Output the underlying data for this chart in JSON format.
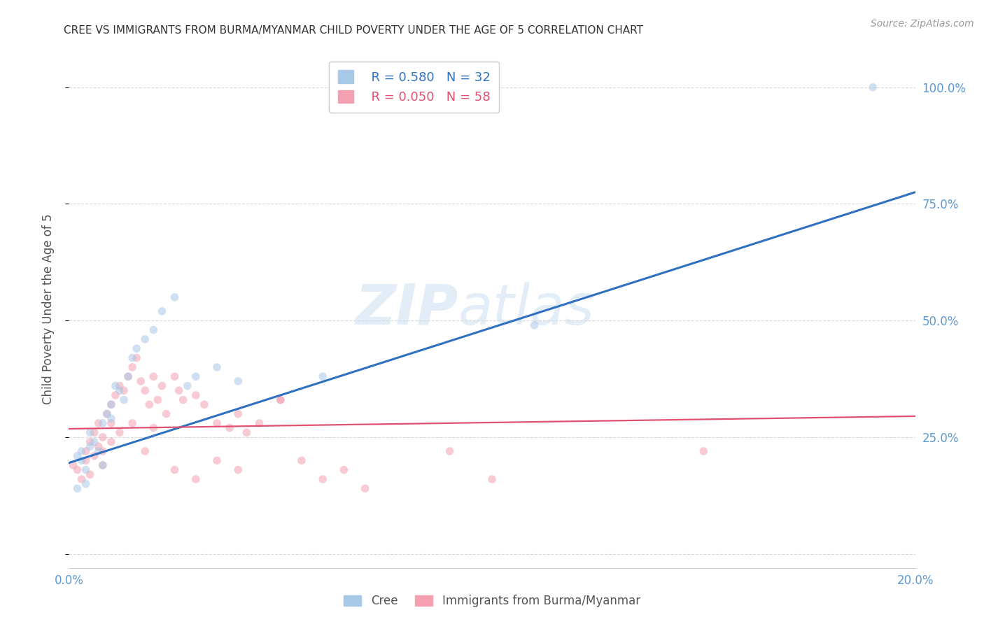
{
  "title": "CREE VS IMMIGRANTS FROM BURMA/MYANMAR CHILD POVERTY UNDER THE AGE OF 5 CORRELATION CHART",
  "source": "Source: ZipAtlas.com",
  "ylabel": "Child Poverty Under the Age of 5",
  "watermark_zip": "ZIP",
  "watermark_atlas": "atlas",
  "legend_blue_R": "R = 0.580",
  "legend_blue_N": "N = 32",
  "legend_pink_R": "R = 0.050",
  "legend_pink_N": "N = 58",
  "legend_blue_label": "Cree",
  "legend_pink_label": "Immigrants from Burma/Myanmar",
  "blue_color": "#a8c8e8",
  "pink_color": "#f4a0b0",
  "trendline_blue_color": "#3070c0",
  "trendline_pink_color": "#e05070",
  "blue_scatter_x": [
    0.002,
    0.003,
    0.003,
    0.004,
    0.004,
    0.005,
    0.005,
    0.006,
    0.007,
    0.008,
    0.008,
    0.009,
    0.01,
    0.01,
    0.011,
    0.012,
    0.013,
    0.014,
    0.015,
    0.016,
    0.018,
    0.02,
    0.022,
    0.025,
    0.028,
    0.03,
    0.035,
    0.04,
    0.06,
    0.002,
    0.11,
    0.19
  ],
  "blue_scatter_y": [
    0.21,
    0.2,
    0.22,
    0.18,
    0.15,
    0.23,
    0.26,
    0.24,
    0.22,
    0.19,
    0.28,
    0.3,
    0.29,
    0.32,
    0.36,
    0.35,
    0.33,
    0.38,
    0.42,
    0.44,
    0.46,
    0.48,
    0.52,
    0.55,
    0.36,
    0.38,
    0.4,
    0.37,
    0.38,
    0.14,
    0.49,
    1.0
  ],
  "pink_scatter_x": [
    0.001,
    0.002,
    0.003,
    0.004,
    0.004,
    0.005,
    0.005,
    0.006,
    0.006,
    0.007,
    0.007,
    0.008,
    0.008,
    0.009,
    0.01,
    0.01,
    0.011,
    0.012,
    0.013,
    0.014,
    0.015,
    0.016,
    0.017,
    0.018,
    0.019,
    0.02,
    0.021,
    0.022,
    0.023,
    0.025,
    0.026,
    0.027,
    0.03,
    0.032,
    0.035,
    0.038,
    0.04,
    0.042,
    0.045,
    0.05,
    0.055,
    0.06,
    0.065,
    0.07,
    0.008,
    0.01,
    0.012,
    0.015,
    0.018,
    0.02,
    0.025,
    0.03,
    0.035,
    0.04,
    0.09,
    0.1,
    0.05,
    0.15
  ],
  "pink_scatter_y": [
    0.19,
    0.18,
    0.16,
    0.2,
    0.22,
    0.24,
    0.17,
    0.26,
    0.21,
    0.28,
    0.23,
    0.25,
    0.19,
    0.3,
    0.32,
    0.28,
    0.34,
    0.36,
    0.35,
    0.38,
    0.4,
    0.42,
    0.37,
    0.35,
    0.32,
    0.38,
    0.33,
    0.36,
    0.3,
    0.38,
    0.35,
    0.33,
    0.34,
    0.32,
    0.28,
    0.27,
    0.3,
    0.26,
    0.28,
    0.33,
    0.2,
    0.16,
    0.18,
    0.14,
    0.22,
    0.24,
    0.26,
    0.28,
    0.22,
    0.27,
    0.18,
    0.16,
    0.2,
    0.18,
    0.22,
    0.16,
    0.33,
    0.22
  ],
  "blue_trend_x": [
    0.0,
    0.2
  ],
  "blue_trend_y": [
    0.195,
    0.775
  ],
  "pink_trend_x": [
    0.0,
    0.2
  ],
  "pink_trend_y": [
    0.268,
    0.295
  ],
  "background_color": "#ffffff",
  "grid_color": "#d0d0d0",
  "title_color": "#333333",
  "axis_label_color": "#5b9bd5",
  "marker_size": 70,
  "marker_alpha": 0.55,
  "xlim": [
    0.0,
    0.2
  ],
  "ylim": [
    -0.03,
    1.08
  ],
  "yticks": [
    0.0,
    0.25,
    0.5,
    0.75,
    1.0
  ],
  "ytick_labels": [
    "",
    "25.0%",
    "50.0%",
    "75.0%",
    "100.0%"
  ],
  "xticks": [
    0.0,
    0.05,
    0.1,
    0.15,
    0.2
  ],
  "xtick_labels": [
    "0.0%",
    "",
    "",
    "",
    "20.0%"
  ]
}
